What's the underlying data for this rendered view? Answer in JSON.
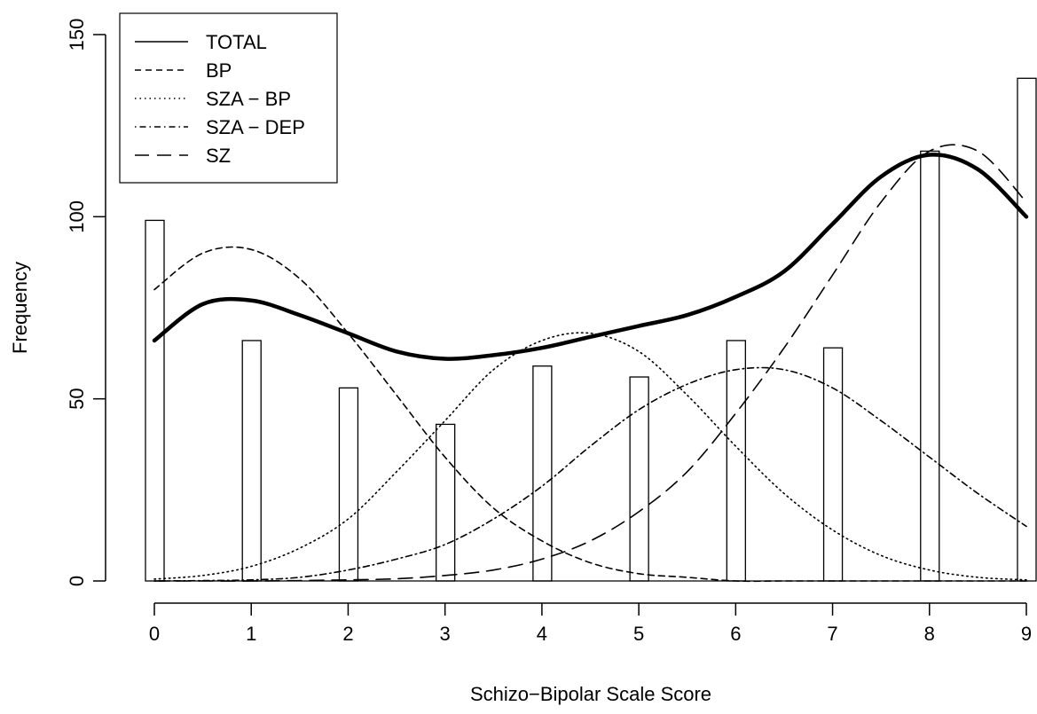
{
  "chart_data": {
    "type": "bar",
    "xlabel": "Schizo−Bipolar Scale Score",
    "ylabel": "Frequency",
    "xlim": [
      0,
      9
    ],
    "ylim": [
      0,
      150
    ],
    "x_ticks": [
      "0",
      "1",
      "2",
      "3",
      "4",
      "5",
      "6",
      "7",
      "8",
      "9"
    ],
    "y_ticks": [
      "0",
      "50",
      "100",
      "150"
    ],
    "bars": {
      "x": [
        0,
        1,
        2,
        3,
        4,
        5,
        6,
        7,
        8,
        9
      ],
      "values": [
        99,
        66,
        53,
        43,
        59,
        56,
        66,
        64,
        118,
        138
      ]
    },
    "legend": {
      "position": "top-left",
      "entries": [
        {
          "label": "TOTAL",
          "dash": "solid"
        },
        {
          "label": "BP",
          "dash": "short-dash"
        },
        {
          "label": "SZA − BP",
          "dash": "dotted"
        },
        {
          "label": "SZA − DEP",
          "dash": "dot-dash"
        },
        {
          "label": "SZ",
          "dash": "long-dash"
        }
      ]
    },
    "series": [
      {
        "name": "TOTAL",
        "x": [
          0,
          0.5,
          1,
          1.5,
          2,
          2.5,
          3,
          3.5,
          4,
          4.5,
          5,
          5.5,
          6,
          6.5,
          7,
          7.5,
          8,
          8.5,
          9
        ],
        "values": [
          66,
          76,
          77,
          73,
          68,
          63,
          61,
          62,
          64,
          67,
          70,
          73,
          78,
          85,
          98,
          111,
          117,
          113,
          100
        ]
      },
      {
        "name": "BP",
        "x": [
          0,
          0.5,
          1,
          1.5,
          2,
          2.5,
          3,
          3.5,
          4,
          4.5,
          5,
          5.5,
          6,
          6.5,
          7,
          7.5,
          8,
          8.5,
          9
        ],
        "values": [
          80,
          90,
          91,
          83,
          68,
          51,
          34,
          20,
          11,
          5,
          2,
          1,
          0,
          0,
          0,
          0,
          0,
          0,
          0
        ]
      },
      {
        "name": "SZA − BP",
        "x": [
          0,
          0.5,
          1,
          1.5,
          2,
          2.5,
          3,
          3.5,
          4,
          4.5,
          5,
          5.5,
          6,
          6.5,
          7,
          7.5,
          8,
          8.5,
          9
        ],
        "values": [
          0.5,
          1.5,
          4,
          9,
          17,
          30,
          44,
          58,
          66,
          68,
          63,
          51,
          37,
          24,
          14,
          7,
          3,
          1,
          0.3
        ]
      },
      {
        "name": "SZA − DEP",
        "x": [
          0,
          0.5,
          1,
          1.5,
          2,
          2.5,
          3,
          3.5,
          4,
          4.5,
          5,
          5.5,
          6,
          6.5,
          7,
          7.5,
          8,
          8.5,
          9
        ],
        "values": [
          0,
          0.1,
          0.3,
          1,
          3,
          6,
          10,
          17,
          26,
          37,
          47,
          54,
          58,
          58,
          53,
          44,
          34,
          24,
          15
        ]
      },
      {
        "name": "SZ",
        "x": [
          0,
          0.5,
          1,
          1.5,
          2,
          2.5,
          3,
          3.5,
          4,
          4.5,
          5,
          5.5,
          6,
          6.5,
          7,
          7.5,
          8,
          8.5,
          9
        ],
        "values": [
          0,
          0,
          0,
          0.1,
          0.3,
          0.6,
          1.5,
          3,
          6,
          11,
          19,
          30,
          46,
          64,
          84,
          104,
          118,
          118,
          104
        ]
      }
    ]
  }
}
